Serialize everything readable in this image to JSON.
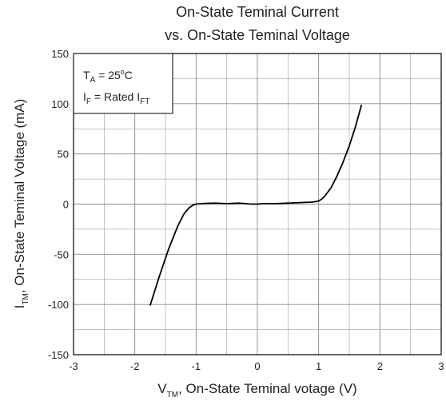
{
  "chart_data": {
    "type": "line",
    "title_line1": "On-State Teminal Current",
    "title_line2": "vs. On-State Teminal Voltage",
    "xlabel": {
      "main": "V",
      "sub": "TM",
      "rest": ", On-State Teminal votage (V)"
    },
    "ylabel": {
      "main": "I",
      "sub": "TM",
      "rest": ", On-State Teminal Voltage (mA)"
    },
    "xlim": [
      -3,
      3
    ],
    "ylim": [
      -150,
      150
    ],
    "x_ticks": [
      -3,
      -2,
      -1,
      0,
      1,
      2,
      3
    ],
    "y_ticks": [
      -150,
      -100,
      -50,
      0,
      50,
      100,
      150
    ],
    "x_tick_labels": [
      "-3",
      "-2",
      "-1",
      "0",
      "1",
      "2",
      "3"
    ],
    "y_tick_labels": [
      "-150",
      "-100",
      "-50",
      "0",
      "50",
      "100",
      "150"
    ],
    "grid": true,
    "annotation": {
      "line1": {
        "main": "T",
        "sub": "A",
        "rest": " = 25",
        "sup": "o",
        "end": "C"
      },
      "line2": {
        "main": "I",
        "sub": "F",
        "rest": " = Rated I",
        "sub2": "FT"
      }
    },
    "series": [
      {
        "color": "#000000",
        "x": [
          -1.75,
          -1.6,
          -1.45,
          -1.3,
          -1.2,
          -1.12,
          -1.05,
          -1.0,
          -0.9,
          -0.7,
          -0.5,
          -0.3,
          -0.1,
          0.0,
          0.1,
          0.3,
          0.5,
          0.7,
          0.9,
          1.0,
          1.05,
          1.1,
          1.2,
          1.3,
          1.4,
          1.5,
          1.6,
          1.7
        ],
        "y": [
          -101,
          -72,
          -45,
          -22,
          -10,
          -4,
          -1,
          0,
          0.5,
          1,
          0.5,
          1,
          0,
          0,
          0.5,
          0.5,
          1,
          1.5,
          2,
          3,
          5,
          8,
          16,
          28,
          42,
          58,
          77,
          99
        ]
      }
    ]
  }
}
